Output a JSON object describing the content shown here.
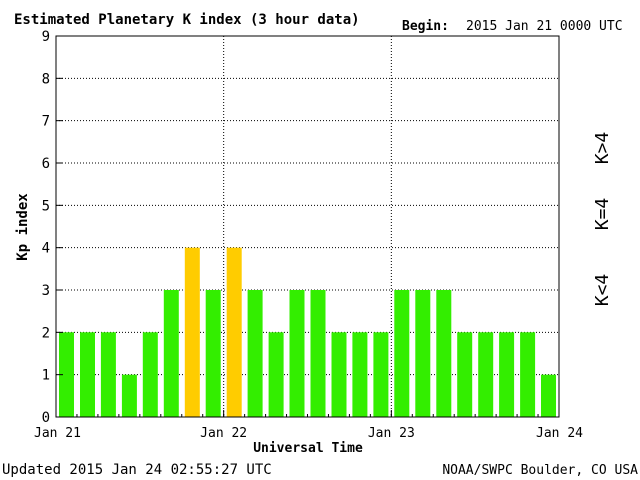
{
  "header": {
    "title": "Estimated Planetary K index (3 hour data)",
    "begin_label": "Begin:",
    "begin_value": "2015 Jan 21 0000 UTC"
  },
  "footer": {
    "updated": "Updated 2015 Jan 24 02:55:27 UTC",
    "source": "NOAA/SWPC Boulder, CO USA"
  },
  "legend": {
    "high": {
      "label": "K>4",
      "color": "#ff2a00"
    },
    "equal": {
      "label": "K=4",
      "color": "#ffcc00"
    },
    "low": {
      "label": "K<4",
      "color": "#33ee00"
    }
  },
  "chart_data": {
    "type": "bar",
    "title": "Estimated Planetary K index (3 hour data)",
    "xlabel": "Universal Time",
    "ylabel": "Kp index",
    "ylim": [
      0,
      9
    ],
    "yticks": [
      "0",
      "1",
      "2",
      "3",
      "4",
      "5",
      "6",
      "7",
      "8",
      "9"
    ],
    "xticks": [
      {
        "label": "Jan 21",
        "day": 0
      },
      {
        "label": "Jan 22",
        "day": 1
      },
      {
        "label": "Jan 23",
        "day": 2
      },
      {
        "label": "Jan 24",
        "day": 3
      }
    ],
    "grid": true,
    "values": [
      2,
      2,
      2,
      1,
      2,
      3,
      4,
      3,
      4,
      3,
      2,
      3,
      3,
      2,
      2,
      2,
      3,
      3,
      3,
      2,
      2,
      2,
      2,
      1
    ],
    "colors": {
      "below": "#33ee00",
      "equal": "#ffcc00",
      "above": "#ff2a00"
    }
  }
}
